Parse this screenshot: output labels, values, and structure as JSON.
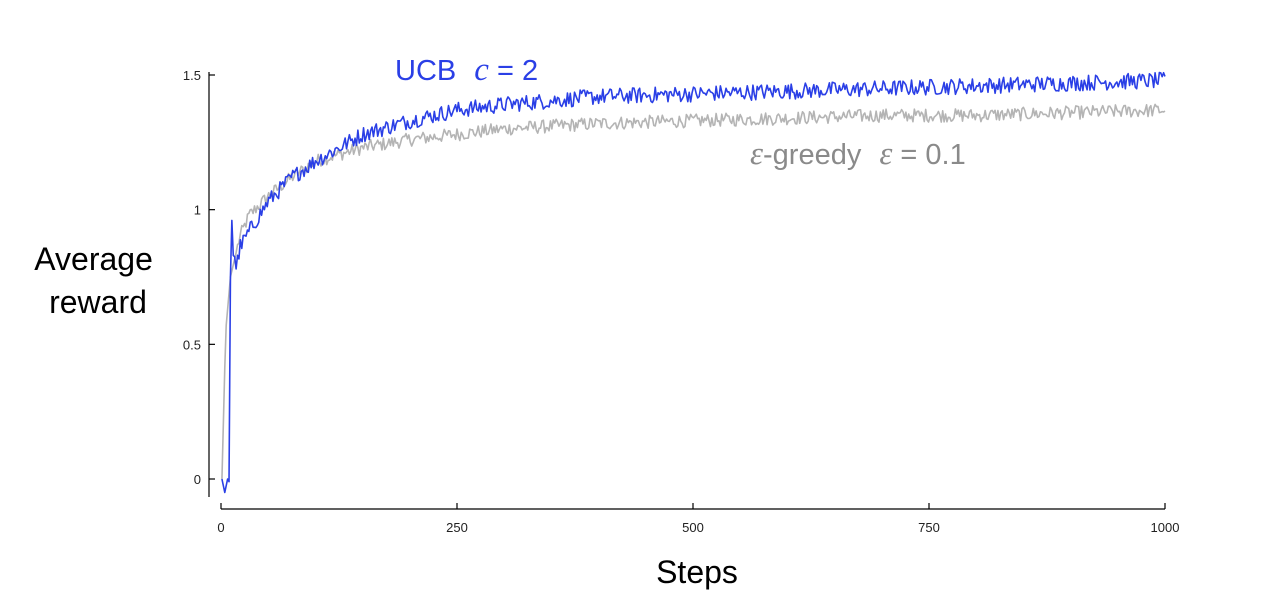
{
  "chart_data": {
    "type": "line",
    "title": "",
    "xlabel": "Steps",
    "ylabel_lines": [
      "Average",
      "reward"
    ],
    "xlim": [
      0,
      1000
    ],
    "ylim": [
      -0.1,
      1.52
    ],
    "xticks": [
      0,
      250,
      500,
      750,
      1000
    ],
    "xtick_labels": [
      "0",
      "250",
      "500",
      "750",
      "1000"
    ],
    "yticks": [
      0,
      0.5,
      1,
      1.5
    ],
    "ytick_labels": [
      "0",
      "0.5",
      "1",
      "1.5"
    ],
    "grid": false,
    "legend": "inline labels",
    "series": [
      {
        "id": "egreedy",
        "label_text": "-greedy",
        "label_symbol": "ε",
        "label_param": "ε",
        "label_value": " = 0.1",
        "color": "#b4b4b4",
        "curve_points": {
          "x": [
            1,
            5,
            10,
            20,
            30,
            50,
            75,
            100,
            150,
            200,
            250,
            300,
            400,
            500,
            600,
            700,
            800,
            900,
            1000
          ],
          "y": [
            0.0,
            0.55,
            0.75,
            0.9,
            0.98,
            1.05,
            1.12,
            1.18,
            1.23,
            1.26,
            1.28,
            1.3,
            1.32,
            1.33,
            1.34,
            1.35,
            1.35,
            1.36,
            1.37
          ]
        },
        "noise": 0.025
      },
      {
        "id": "ucb",
        "label_text": "UCB",
        "label_param": "c",
        "label_value": " = 2",
        "color": "#2a3fe6",
        "curve_points": {
          "x": [
            1,
            4,
            7,
            8,
            9,
            10,
            11,
            12,
            14,
            16,
            20,
            30,
            50,
            75,
            100,
            150,
            200,
            250,
            300,
            400,
            500,
            600,
            700,
            800,
            900,
            1000
          ],
          "y": [
            0.0,
            -0.05,
            0.0,
            -0.02,
            0.0,
            0.75,
            1.1,
            0.82,
            0.84,
            0.78,
            0.86,
            0.92,
            1.03,
            1.12,
            1.18,
            1.28,
            1.33,
            1.37,
            1.39,
            1.42,
            1.43,
            1.44,
            1.45,
            1.46,
            1.47,
            1.48
          ]
        },
        "noise": 0.03
      }
    ]
  }
}
